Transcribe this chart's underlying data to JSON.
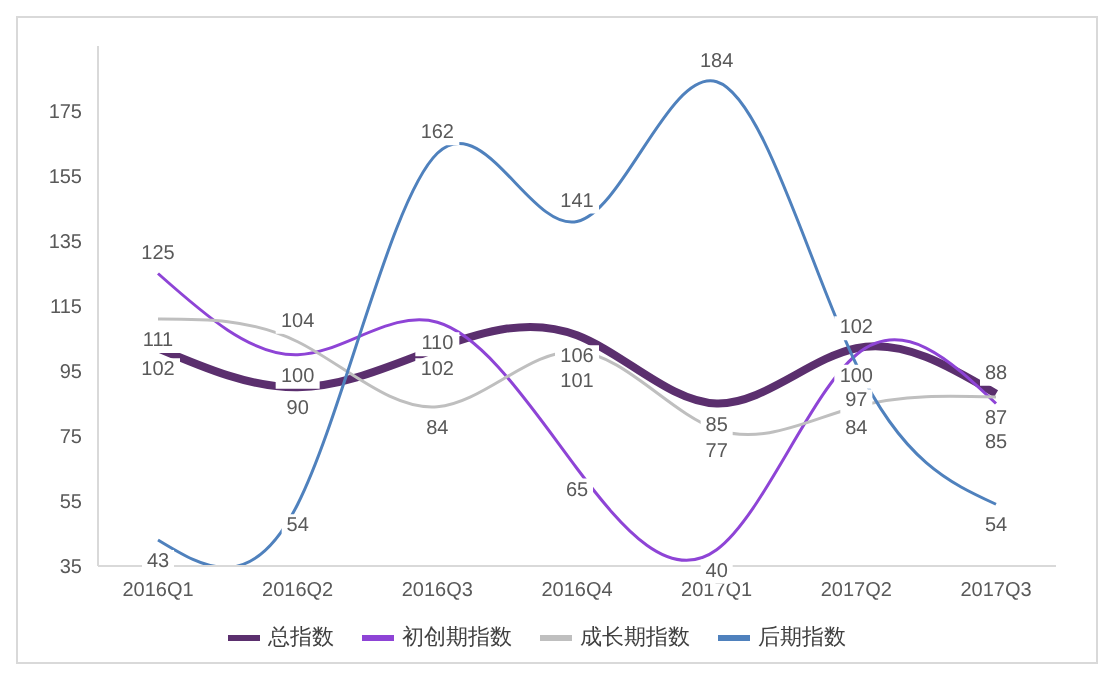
{
  "chart_data": {
    "type": "line",
    "categories": [
      "2016Q1",
      "2016Q2",
      "2016Q3",
      "2016Q4",
      "2017Q1",
      "2017Q2",
      "2017Q3"
    ],
    "series": [
      {
        "name": "总指数",
        "color": "#5b2f6e",
        "values": [
          102,
          90,
          102,
          106,
          85,
          102,
          88
        ]
      },
      {
        "name": "初创期指数",
        "color": "#8e44d6",
        "values": [
          125,
          100,
          110,
          65,
          40,
          100,
          85
        ]
      },
      {
        "name": "成长期指数",
        "color": "#bfbfbf",
        "values": [
          111,
          104,
          84,
          101,
          77,
          84,
          87
        ]
      },
      {
        "name": "后期指数",
        "color": "#4f81bd",
        "values": [
          43,
          54,
          162,
          141,
          184,
          97,
          54
        ]
      }
    ],
    "ylim": [
      35,
      195
    ],
    "yticks": [
      35,
      55,
      75,
      95,
      115,
      135,
      155,
      175
    ],
    "grid": false,
    "legend": "bottom",
    "data_labels": true,
    "marker": "none",
    "line_style": "solid"
  }
}
